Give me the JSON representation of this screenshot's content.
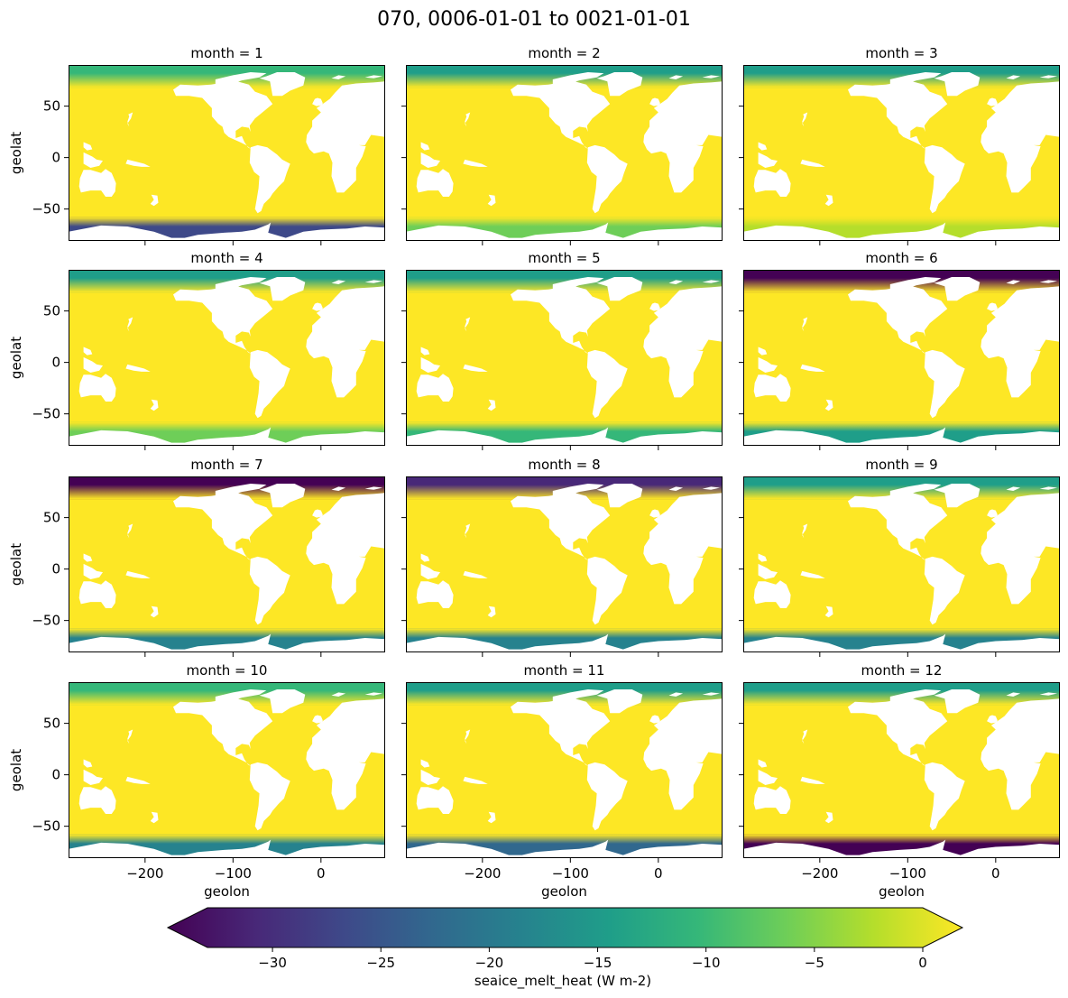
{
  "chart_data": {
    "type": "heatmap",
    "title": "070, 0006-01-01 to 0021-01-01",
    "panels": [
      {
        "label": "month = 1",
        "arctic_melt_strength": 0.35,
        "antarctic_melt_strength": 0.75
      },
      {
        "label": "month = 2",
        "arctic_melt_strength": 0.4,
        "antarctic_melt_strength": 0.2
      },
      {
        "label": "month = 3",
        "arctic_melt_strength": 0.45,
        "antarctic_melt_strength": 0.1
      },
      {
        "label": "month = 4",
        "arctic_melt_strength": 0.4,
        "antarctic_melt_strength": 0.2
      },
      {
        "label": "month = 5",
        "arctic_melt_strength": 0.45,
        "antarctic_melt_strength": 0.35
      },
      {
        "label": "month = 6",
        "arctic_melt_strength": 0.95,
        "antarctic_melt_strength": 0.45
      },
      {
        "label": "month = 7",
        "arctic_melt_strength": 1.0,
        "antarctic_melt_strength": 0.55
      },
      {
        "label": "month = 8",
        "arctic_melt_strength": 0.9,
        "antarctic_melt_strength": 0.55
      },
      {
        "label": "month = 9",
        "arctic_melt_strength": 0.4,
        "antarctic_melt_strength": 0.6
      },
      {
        "label": "month = 10",
        "arctic_melt_strength": 0.35,
        "antarctic_melt_strength": 0.6
      },
      {
        "label": "month = 11",
        "arctic_melt_strength": 0.4,
        "antarctic_melt_strength": 0.7
      },
      {
        "label": "month = 12",
        "arctic_melt_strength": 0.45,
        "antarctic_melt_strength": 0.95
      }
    ],
    "xlabel": "geolon",
    "ylabel": "geolat",
    "xlim": [
      -287,
      73
    ],
    "ylim": [
      -81,
      90
    ],
    "xticks": [
      -200,
      -100,
      0
    ],
    "xtick_labels": [
      "−200",
      "−100",
      "0"
    ],
    "yticks": [
      50,
      0,
      -50
    ],
    "ytick_labels": [
      "50",
      "0",
      "−50"
    ],
    "colorbar": {
      "label": "seaice_melt_heat (W m-2)",
      "vmin": -33,
      "vmax": 0,
      "ticks": [
        -30,
        -25,
        -20,
        -15,
        -10,
        -5,
        0
      ],
      "tick_labels": [
        "−30",
        "−25",
        "−20",
        "−15",
        "−10",
        "−5",
        "0"
      ],
      "extend": "both",
      "colormap": "viridis",
      "colormap_stops": [
        "#440154",
        "#482878",
        "#3e4989",
        "#31688e",
        "#26828e",
        "#1f9e89",
        "#35b779",
        "#6ece58",
        "#b5de2b",
        "#fde725"
      ]
    }
  }
}
